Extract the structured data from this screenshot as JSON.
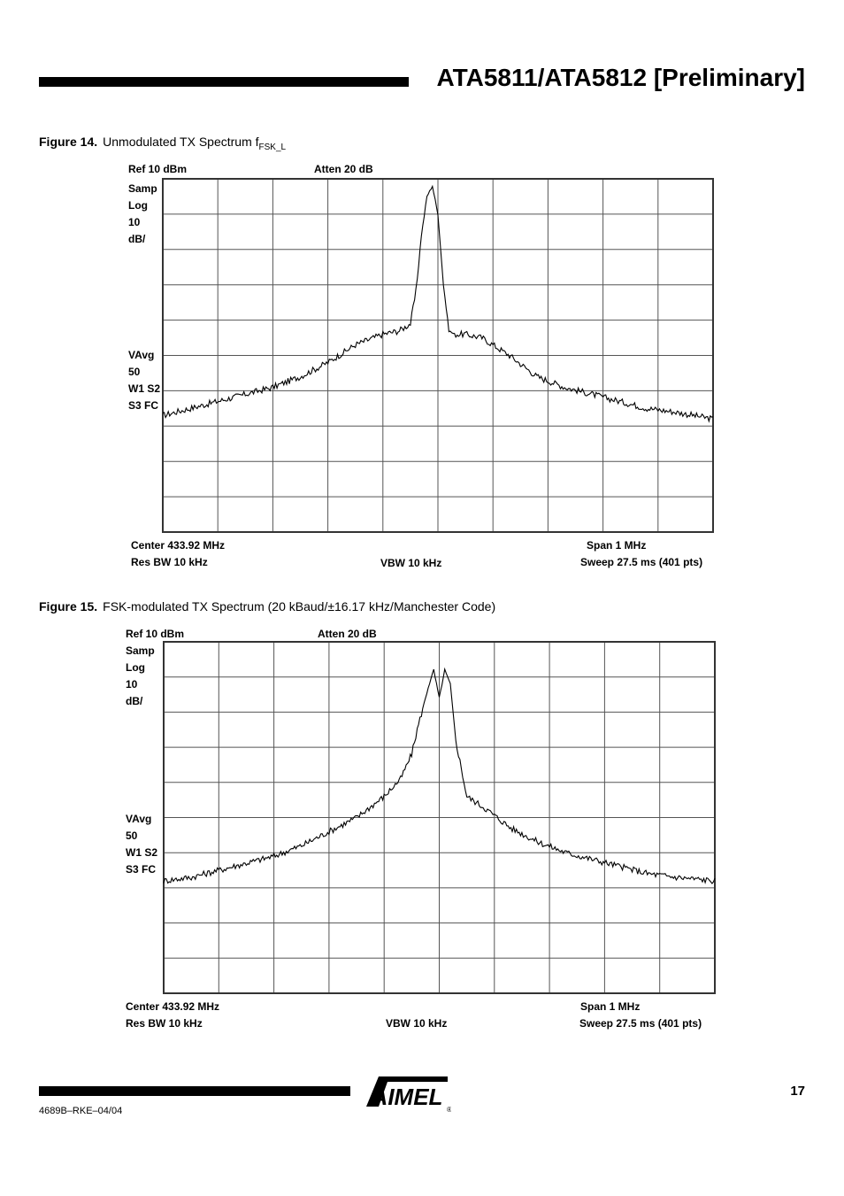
{
  "header": {
    "title": "ATA5811/ATA5812 [Preliminary]"
  },
  "figures": [
    {
      "caption_num": "Figure 14.",
      "caption_text": "Unmodulated TX Spectrum f",
      "caption_sub": "FSK_L",
      "ref": "Ref 10 dBm",
      "atten": "Atten 20 dB",
      "side": [
        "Samp",
        "Log",
        "10",
        "dB/",
        "VAvg",
        "50",
        "W1 S2",
        "S3 FC"
      ],
      "center": "Center 433.92 MHz",
      "span": "Span 1 MHz",
      "resbw": "Res BW 10 kHz",
      "vbw": "VBW 10 kHz",
      "sweep": "Sweep 27.5 ms (401 pts)"
    },
    {
      "caption_num": "Figure 15.",
      "caption_text": "FSK-modulated TX Spectrum (20 kBaud/±16.17 kHz/Manchester Code)",
      "caption_sub": "",
      "ref": "Ref 10 dBm",
      "atten": "Atten 20 dB",
      "side": [
        "Samp",
        "Log",
        "10",
        "dB/",
        "VAvg",
        "50",
        "W1 S2",
        "S3 FC"
      ],
      "center": "Center 433.92 MHz",
      "span": "Span 1 MHz",
      "resbw": "Res BW 10 kHz",
      "vbw": "VBW 10 kHz",
      "sweep": "Sweep 27.5 ms (401 pts)"
    }
  ],
  "chart_data": [
    {
      "type": "line",
      "x_unit": "MHz",
      "y_unit": "dBm",
      "xlim": [
        433.42,
        434.42
      ],
      "ylim": [
        -90,
        10
      ],
      "grid": true,
      "series": [
        {
          "x": [
            433.42,
            433.47,
            433.52,
            433.57,
            433.62,
            433.67,
            433.72,
            433.77,
            433.82,
            433.85,
            433.87,
            433.88,
            433.89,
            433.9,
            433.91,
            433.92,
            433.93,
            433.94,
            433.95,
            433.97,
            434.0,
            434.05,
            434.1,
            434.15,
            434.2,
            434.25,
            434.3,
            434.35,
            434.42
          ],
          "y": [
            -57,
            -55,
            -53,
            -51,
            -49,
            -46,
            -42,
            -37,
            -34,
            -33,
            -31,
            -22,
            -6,
            5,
            8,
            0,
            -20,
            -33,
            -34,
            -34,
            -35,
            -40,
            -46,
            -49,
            -51,
            -53,
            -55,
            -56,
            -58
          ]
        }
      ]
    },
    {
      "type": "line",
      "x_unit": "MHz",
      "y_unit": "dBm",
      "xlim": [
        433.42,
        434.42
      ],
      "ylim": [
        -90,
        10
      ],
      "grid": true,
      "series": [
        {
          "x": [
            433.42,
            433.47,
            433.52,
            433.57,
            433.62,
            433.67,
            433.72,
            433.77,
            433.82,
            433.85,
            433.87,
            433.88,
            433.89,
            433.9,
            433.91,
            433.92,
            433.93,
            433.94,
            433.95,
            433.97,
            434.0,
            434.05,
            434.1,
            434.15,
            434.2,
            434.25,
            434.3,
            434.35,
            434.42
          ],
          "y": [
            -58,
            -57,
            -55,
            -53,
            -51,
            -48,
            -44,
            -40,
            -34,
            -29,
            -22,
            -15,
            -9,
            -3,
            2,
            -6,
            2,
            -2,
            -18,
            -34,
            -37,
            -43,
            -47,
            -50,
            -52,
            -54,
            -56,
            -57,
            -58
          ]
        }
      ]
    }
  ]
}
